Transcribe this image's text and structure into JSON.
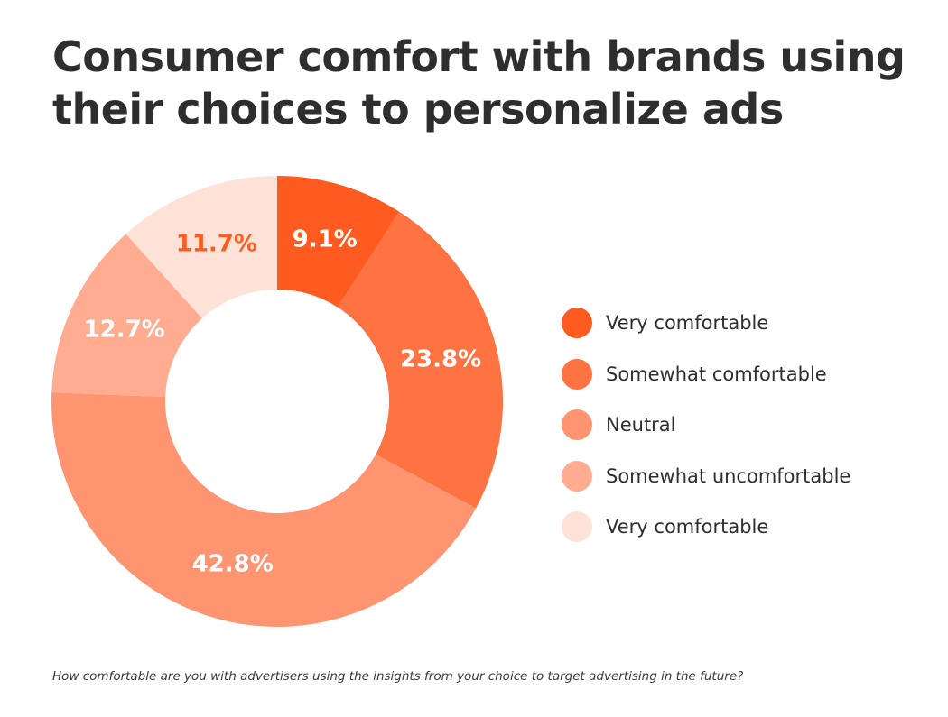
{
  "title": "Consumer comfort with brands using their choices to personalize ads",
  "caption": "How comfortable are you with advertisers using the insights from your choice to target advertising in the future?",
  "chart_data": {
    "type": "pie",
    "style": "donut",
    "categories": [
      "Very comfortable",
      "Somewhat comfortable",
      "Neutral",
      "Somewhat uncomfortable",
      "Very comfortable"
    ],
    "values": [
      9.1,
      23.8,
      42.8,
      12.7,
      11.7
    ],
    "data_labels": [
      "9.1%",
      "23.8%",
      "42.8%",
      "12.7%",
      "11.7%"
    ],
    "colors": [
      "#ff5a1f",
      "#ff7241",
      "#ff9470",
      "#ffac91",
      "#ffe2d7"
    ],
    "label_colors": [
      "#ffffff",
      "#ffffff",
      "#ffffff",
      "#ffffff",
      "#ff5a1f"
    ],
    "legend_position": "right"
  }
}
